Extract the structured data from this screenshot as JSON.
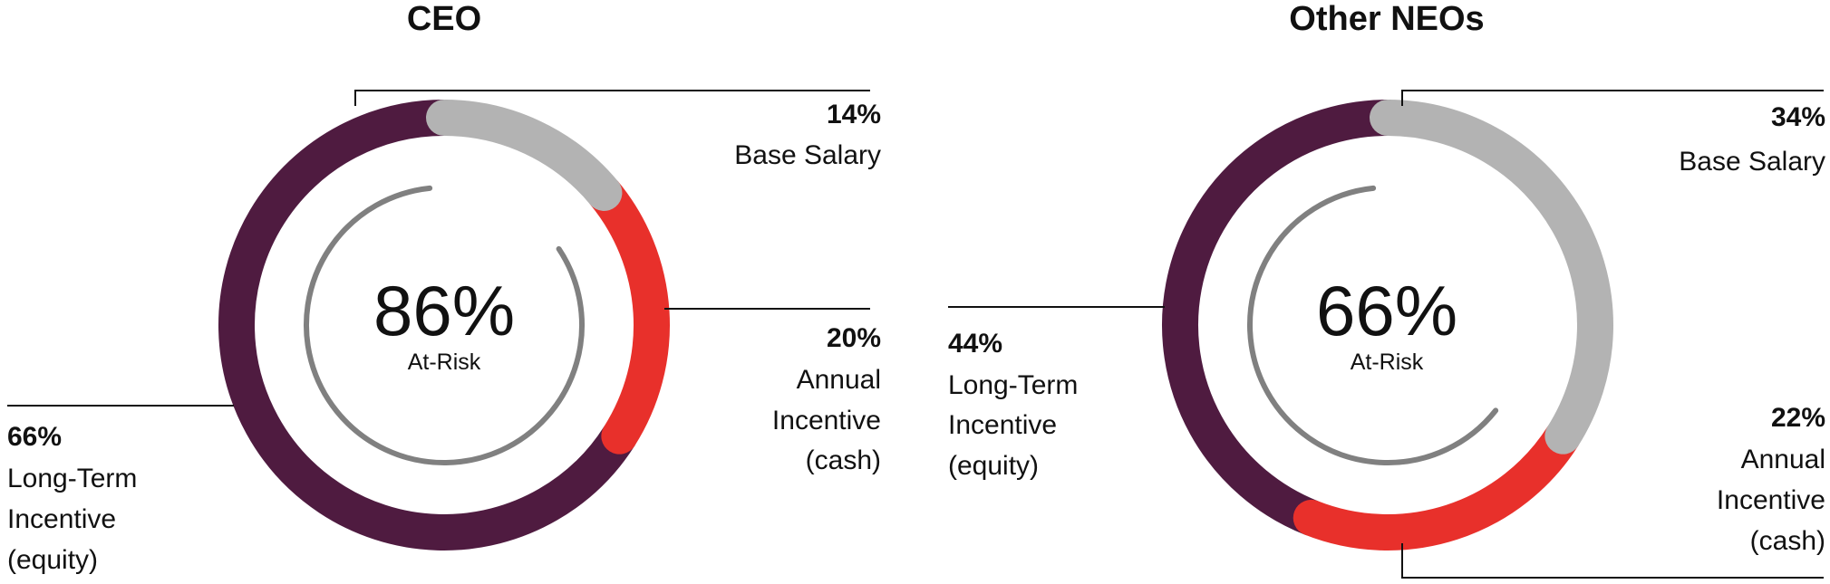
{
  "chart_data": [
    {
      "type": "donut",
      "title": "CEO",
      "center_value": "86%",
      "center_label": "At-Risk",
      "at_risk_percent": 86,
      "segments": [
        {
          "name": "Base Salary",
          "value": 14,
          "label_pct": "14%",
          "label_lines": [
            "Base Salary"
          ],
          "color": "#b3b3b3"
        },
        {
          "name": "Annual Incentive (cash)",
          "value": 20,
          "label_pct": "20%",
          "label_lines": [
            "Annual",
            "Incentive",
            "(cash)"
          ],
          "color": "#e8302b"
        },
        {
          "name": "Long-Term Incentive (equity)",
          "value": 66,
          "label_pct": "66%",
          "label_lines": [
            "Long-Term",
            "Incentive",
            "(equity)"
          ],
          "color": "#4f1b40"
        }
      ]
    },
    {
      "type": "donut",
      "title": "Other NEOs",
      "center_value": "66%",
      "center_label": "At-Risk",
      "at_risk_percent": 66,
      "segments": [
        {
          "name": "Base Salary",
          "value": 34,
          "label_pct": "34%",
          "label_lines": [
            "Base Salary"
          ],
          "color": "#b3b3b3"
        },
        {
          "name": "Annual Incentive (cash)",
          "value": 22,
          "label_pct": "22%",
          "label_lines": [
            "Annual",
            "Incentive",
            "(cash)"
          ],
          "color": "#e8302b"
        },
        {
          "name": "Long-Term Incentive (equity)",
          "value": 44,
          "label_pct": "44%",
          "label_lines": [
            "Long-Term",
            "Incentive",
            "(equity)"
          ],
          "color": "#4f1b40"
        }
      ]
    }
  ],
  "colors": {
    "inner_arc": "#808080",
    "leader_line": "#111111"
  }
}
